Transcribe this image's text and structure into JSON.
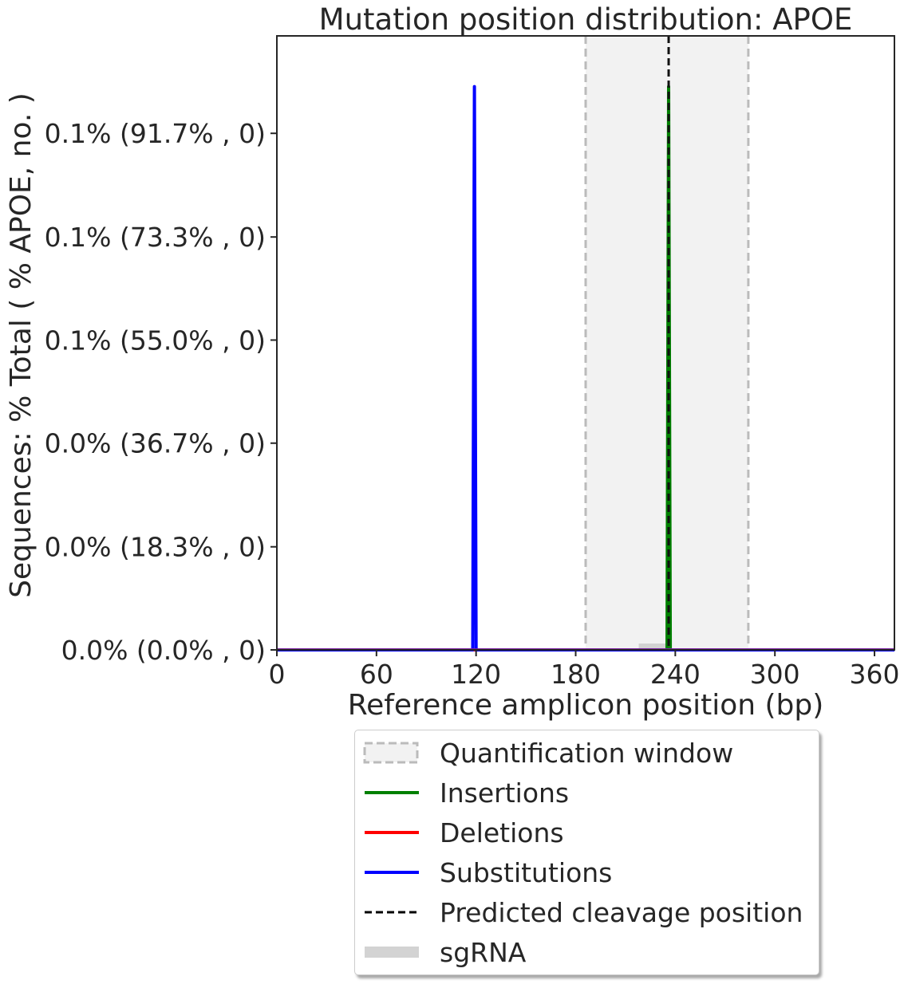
{
  "chart_data": {
    "type": "line",
    "title": "Mutation position distribution: APOE",
    "xlabel": "Reference amplicon position (bp)",
    "ylabel": "Sequences: % Total ( % APOE, no. )",
    "xlim": [
      0,
      372
    ],
    "ylim": [
      0,
      1.09
    ],
    "x_ticks": [
      0,
      60,
      120,
      180,
      240,
      300,
      360
    ],
    "x_tick_labels": [
      "0",
      "60",
      "120",
      "180",
      "240",
      "300",
      "360"
    ],
    "y_ticks": [
      0,
      0.183,
      0.367,
      0.55,
      0.733,
      0.917
    ],
    "y_tick_labels": [
      "0.0% (0.0% , 0)",
      "0.0% (18.3% , 0)",
      "0.0% (36.7% , 0)",
      "0.1% (55.0% , 0)",
      "0.1% (73.3% , 0)",
      "0.1% (91.7% , 0)"
    ],
    "quantification_window": [
      186,
      284
    ],
    "cleavage_position": 236,
    "sgrna": [
      218,
      237
    ],
    "series": [
      {
        "name": "Insertions",
        "color": "#008000",
        "x": [
          0,
          235,
          236,
          237,
          372
        ],
        "y": [
          0,
          0,
          1.0,
          0,
          0
        ]
      },
      {
        "name": "Deletions",
        "color": "#ff0000",
        "x": [
          0,
          372
        ],
        "y": [
          0,
          0
        ]
      },
      {
        "name": "Substitutions",
        "color": "#0000ff",
        "x": [
          0,
          118,
          119,
          120,
          372
        ],
        "y": [
          0,
          0,
          1.0,
          0,
          0
        ]
      }
    ],
    "grid": false,
    "legend_position": "below plot"
  },
  "legend": {
    "items": [
      {
        "label": "Quantification window",
        "icon": "dashed-box-icon",
        "color": "#bbbbbb"
      },
      {
        "label": "Insertions",
        "icon": "line-icon",
        "color": "#008000"
      },
      {
        "label": "Deletions",
        "icon": "line-icon",
        "color": "#ff0000"
      },
      {
        "label": "Substitutions",
        "icon": "line-icon",
        "color": "#0000ff"
      },
      {
        "label": "Predicted cleavage position",
        "icon": "dashed-line-icon",
        "color": "#000000"
      },
      {
        "label": "sgRNA",
        "icon": "thick-bar-icon",
        "color": "#d3d3d3"
      }
    ]
  }
}
